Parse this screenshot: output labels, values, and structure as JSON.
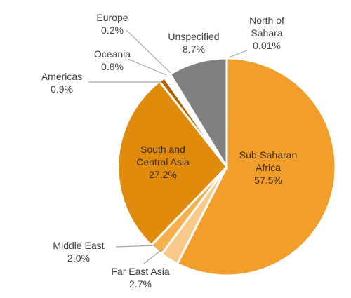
{
  "chart_data": {
    "type": "pie",
    "title": "",
    "unit": "%",
    "slices": [
      {
        "label_lines": [
          "North of",
          "Sahara"
        ],
        "value": 0.01,
        "value_text": "0.01%",
        "color": "#ffffff"
      },
      {
        "label_lines": [
          "Sub-Saharan",
          "Africa"
        ],
        "value": 57.5,
        "value_text": "57.5%",
        "color": "#f29e2b"
      },
      {
        "label_lines": [
          "Far East Asia"
        ],
        "value": 2.7,
        "value_text": "2.7%",
        "color": "#f9c98a"
      },
      {
        "label_lines": [
          "Middle East"
        ],
        "value": 2.0,
        "value_text": "2.0%",
        "color": "#f6b04e"
      },
      {
        "label_lines": [
          "South and",
          "Central Asia"
        ],
        "value": 27.2,
        "value_text": "27.2%",
        "color": "#e08b0b"
      },
      {
        "label_lines": [
          "Americas"
        ],
        "value": 0.9,
        "value_text": "0.9%",
        "color": "#b36200"
      },
      {
        "label_lines": [
          "Oceania"
        ],
        "value": 0.8,
        "value_text": "0.8%",
        "color": "#ffffff"
      },
      {
        "label_lines": [
          "Europe"
        ],
        "value": 0.2,
        "value_text": "0.2%",
        "color": "#fbd9a6"
      },
      {
        "label_lines": [
          "Unspecified"
        ],
        "value": 8.7,
        "value_text": "8.7%",
        "color": "#808080"
      }
    ]
  }
}
